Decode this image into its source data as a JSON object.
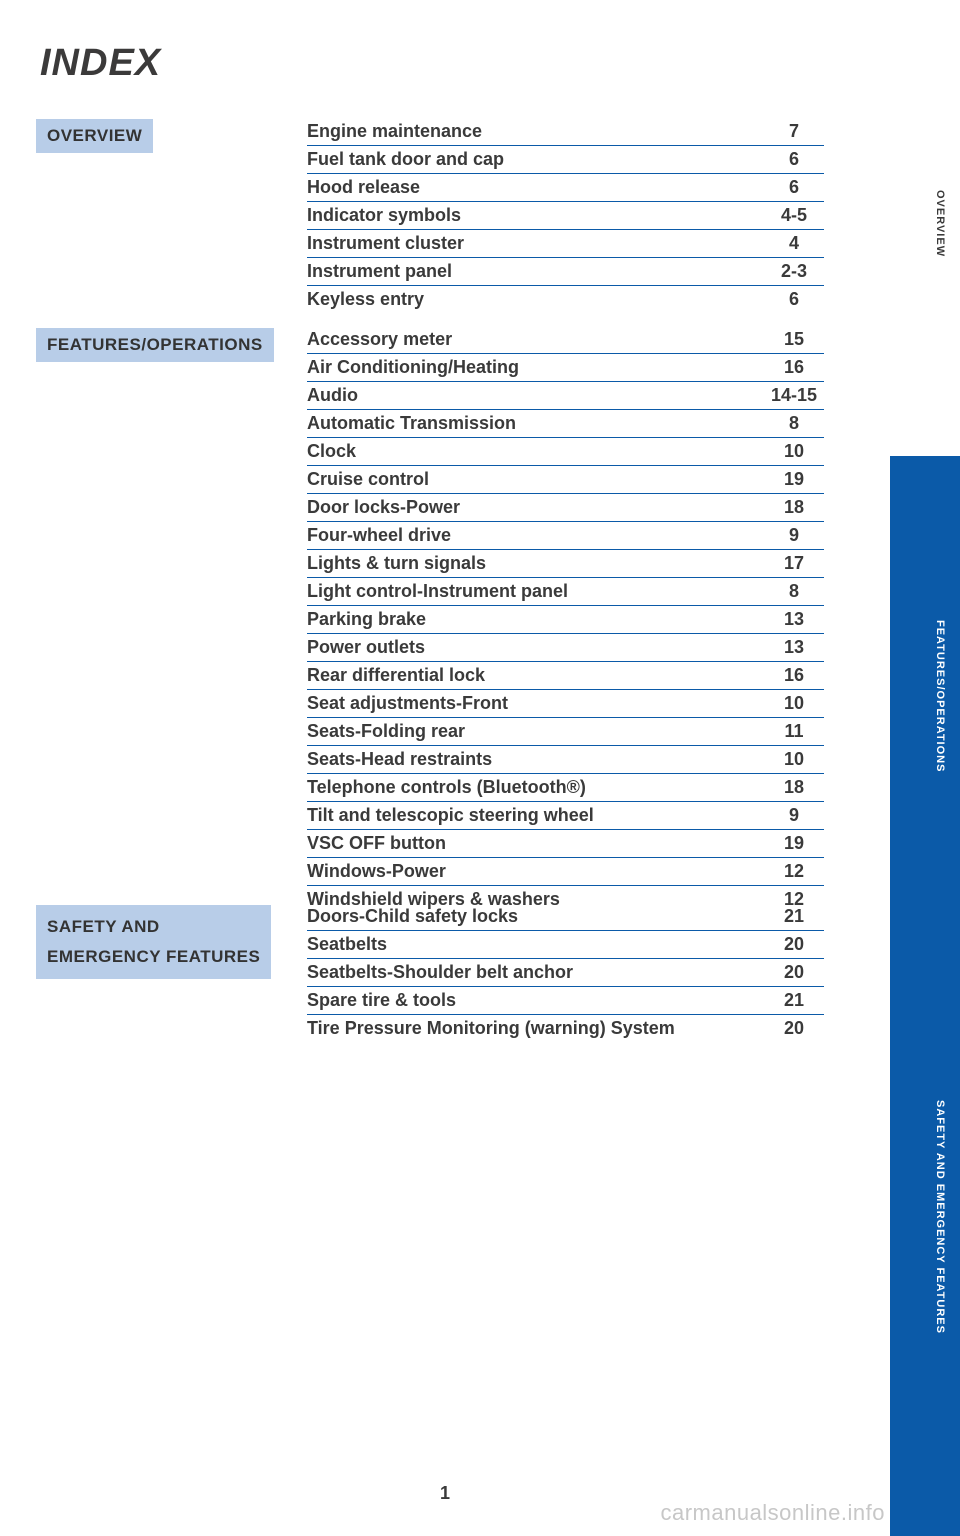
{
  "title": "INDEX",
  "page_number": "1",
  "watermark": {
    "site": "carmanualsonline",
    "domain": ".info"
  },
  "colors": {
    "category_bg": "#b8cde8",
    "rule": "#0b5aa8",
    "tab_active": "#0b5aa8",
    "text": "#3a3a3a"
  },
  "categories": [
    {
      "label": "OVERVIEW"
    },
    {
      "label": "FEATURES/OPERATIONS"
    },
    {
      "label": "SAFETY AND\nEMERGENCY FEATURES"
    }
  ],
  "tabs": [
    {
      "label": "OVERVIEW",
      "active": false
    },
    {
      "label": "FEATURES/OPERATIONS",
      "active": true
    },
    {
      "label": "SAFETY AND EMERGENCY FEATURES",
      "active": true
    }
  ],
  "sections": [
    {
      "items": [
        {
          "entry": "Engine maintenance",
          "page": "7"
        },
        {
          "entry": "Fuel tank door and cap",
          "page": "6"
        },
        {
          "entry": "Hood release",
          "page": "6"
        },
        {
          "entry": "Indicator symbols",
          "page": "4-5"
        },
        {
          "entry": "Instrument cluster",
          "page": "4"
        },
        {
          "entry": "Instrument panel",
          "page": "2-3"
        },
        {
          "entry": "Keyless entry",
          "page": "6"
        }
      ]
    },
    {
      "items": [
        {
          "entry": "Accessory meter",
          "page": "15"
        },
        {
          "entry": "Air Conditioning/Heating",
          "page": "16"
        },
        {
          "entry": "Audio",
          "page": "14-15"
        },
        {
          "entry": "Automatic Transmission",
          "page": "8"
        },
        {
          "entry": "Clock",
          "page": "10"
        },
        {
          "entry": "Cruise control",
          "page": "19"
        },
        {
          "entry": "Door locks-Power",
          "page": "18"
        },
        {
          "entry": "Four-wheel drive",
          "page": "9"
        },
        {
          "entry": "Lights & turn signals",
          "page": "17"
        },
        {
          "entry": "Light control-Instrument panel",
          "page": "8"
        },
        {
          "entry": "Parking brake",
          "page": "13"
        },
        {
          "entry": "Power outlets",
          "page": "13"
        },
        {
          "entry": "Rear differential lock",
          "page": "16"
        },
        {
          "entry": "Seat adjustments-Front",
          "page": "10"
        },
        {
          "entry": "Seats-Folding rear",
          "page": "11"
        },
        {
          "entry": "Seats-Head restraints",
          "page": "10"
        },
        {
          "entry": "Telephone controls (Bluetooth®)",
          "page": "18"
        },
        {
          "entry": "Tilt and telescopic steering wheel",
          "page": "9"
        },
        {
          "entry": "VSC OFF button",
          "page": "19"
        },
        {
          "entry": "Windows-Power",
          "page": "12"
        },
        {
          "entry": "Windshield wipers & washers",
          "page": "12"
        }
      ]
    },
    {
      "items": [
        {
          "entry": "Doors-Child safety locks",
          "page": "21"
        },
        {
          "entry": "Seatbelts",
          "page": "20"
        },
        {
          "entry": "Seatbelts-Shoulder belt anchor",
          "page": "20"
        },
        {
          "entry": "Spare tire & tools",
          "page": "21"
        },
        {
          "entry": "Tire Pressure Monitoring (warning) System",
          "page": "20"
        }
      ]
    }
  ]
}
